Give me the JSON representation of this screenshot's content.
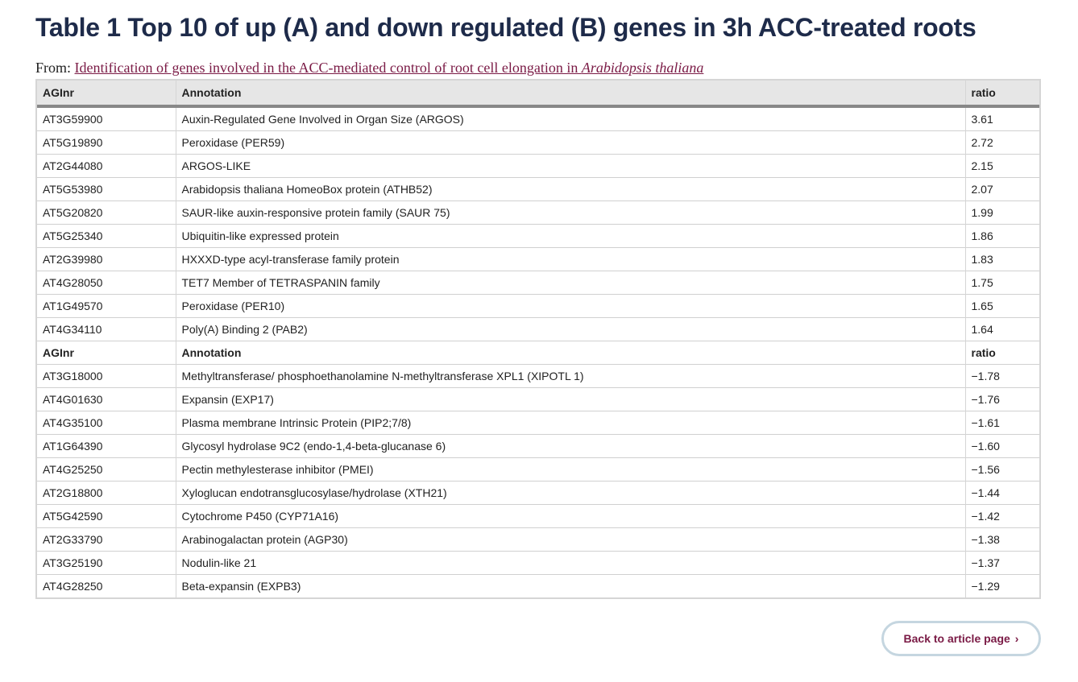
{
  "title": "Table 1 Top 10 of up (A) and down regulated (B) genes in 3h ACC-treated roots",
  "from": {
    "prefix": "From: ",
    "link_text": "Identification of genes involved in the ACC-mediated control of root cell elongation in ",
    "link_italic": "Arabidopsis thaliana"
  },
  "table": {
    "headers": [
      "AGInr",
      "Annotation",
      "ratio"
    ],
    "up_rows": [
      [
        "AT3G59900",
        "Auxin-Regulated Gene Involved in Organ Size (ARGOS)",
        "3.61"
      ],
      [
        "AT5G19890",
        "Peroxidase (PER59)",
        "2.72"
      ],
      [
        "AT2G44080",
        "ARGOS-LIKE",
        "2.15"
      ],
      [
        "AT5G53980",
        "Arabidopsis thaliana HomeoBox protein (ATHB52)",
        "2.07"
      ],
      [
        "AT5G20820",
        "SAUR-like auxin-responsive protein family (SAUR 75)",
        "1.99"
      ],
      [
        "AT5G25340",
        "Ubiquitin-like expressed protein",
        "1.86"
      ],
      [
        "AT2G39980",
        "HXXXD-type acyl-transferase family protein",
        "1.83"
      ],
      [
        "AT4G28050",
        "TET7 Member of TETRASPANIN family",
        "1.75"
      ],
      [
        "AT1G49570",
        "Peroxidase (PER10)",
        "1.65"
      ],
      [
        "AT4G34110",
        "Poly(A) Binding 2 (PAB2)",
        "1.64"
      ]
    ],
    "subheaders": [
      "AGInr",
      "Annotation",
      "ratio"
    ],
    "down_rows": [
      [
        "AT3G18000",
        "Methyltransferase/ phosphoethanolamine N-methyltransferase XPL1 (XIPOTL 1)",
        "−1.78"
      ],
      [
        "AT4G01630",
        "Expansin (EXP17)",
        "−1.76"
      ],
      [
        "AT4G35100",
        "Plasma membrane Intrinsic Protein (PIP2;7/8)",
        "−1.61"
      ],
      [
        "AT1G64390",
        "Glycosyl hydrolase 9C2 (endo-1,4-beta-glucanase 6)",
        "−1.60"
      ],
      [
        "AT4G25250",
        "Pectin methylesterase inhibitor (PMEI)",
        "−1.56"
      ],
      [
        "AT2G18800",
        "Xyloglucan endotransglucosylase/hydrolase (XTH21)",
        "−1.44"
      ],
      [
        "AT5G42590",
        "Cytochrome P450 (CYP71A16)",
        "−1.42"
      ],
      [
        "AT2G33790",
        "Arabinogalactan protein (AGP30)",
        "−1.38"
      ],
      [
        "AT3G25190",
        "Nodulin-like 21",
        "−1.37"
      ],
      [
        "AT4G28250",
        "Beta-expansin (EXPB3)",
        "−1.29"
      ]
    ]
  },
  "back_button": {
    "label": "Back to article page",
    "icon": "chevron-right-icon"
  },
  "colors": {
    "title": "#1e2b4a",
    "link": "#7a1a45",
    "button_border": "#c5d6e0"
  }
}
